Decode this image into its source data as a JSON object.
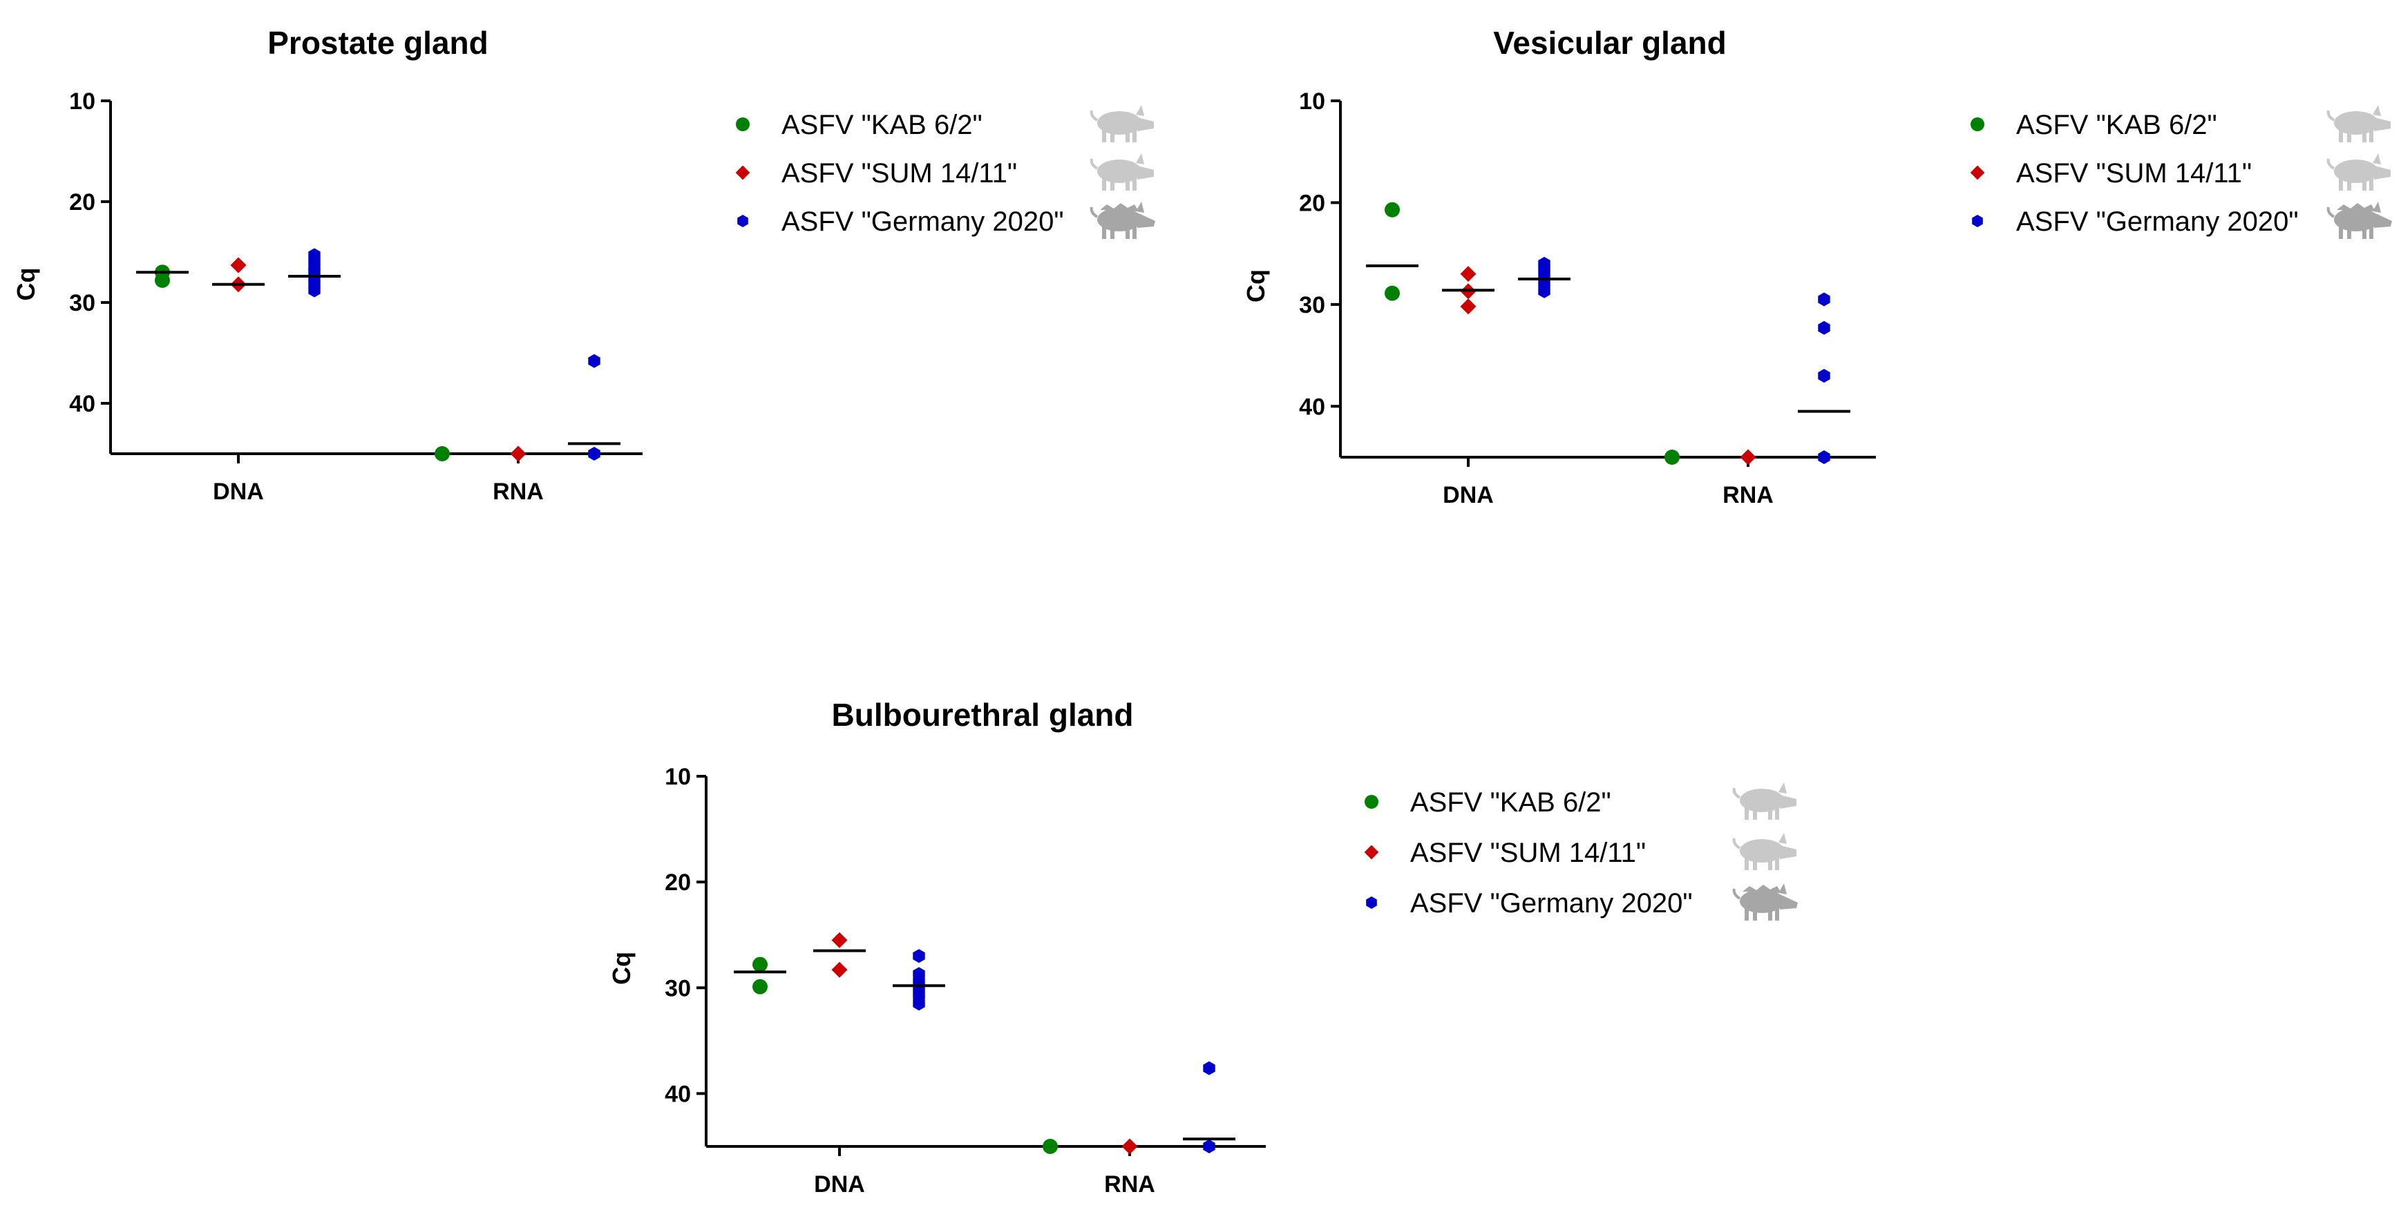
{
  "colors": {
    "kab": "#008000",
    "sum": "#cc0000",
    "germany": "#0000cc",
    "pig_domestic": "#c8c8c8",
    "pig_wild": "#a6a6a6"
  },
  "chart_data": [
    {
      "type": "scatter",
      "title": "Prostate gland",
      "ylabel": "Cq",
      "ylim": [
        10,
        45
      ],
      "y_inverted": true,
      "yticks": [
        "10",
        "20",
        "30",
        "40"
      ],
      "categories": [
        "DNA",
        "RNA"
      ],
      "legend": [
        {
          "name": "ASFV \"KAB 6/2\"",
          "marker": "circle",
          "color": "#008000",
          "icon": "domestic-pig-icon"
        },
        {
          "name": "ASFV \"SUM 14/11\"",
          "marker": "diamond",
          "color": "#cc0000",
          "icon": "domestic-pig-icon"
        },
        {
          "name": "ASFV \"Germany 2020\"",
          "marker": "hexagon",
          "color": "#0000cc",
          "icon": "wild-boar-icon"
        }
      ],
      "series": [
        {
          "name": "ASFV \"KAB 6/2\"",
          "DNA": {
            "values": [
              27.0,
              27.8
            ],
            "mean": 27.0
          },
          "RNA": {
            "values": [
              45.0
            ],
            "mean": null
          }
        },
        {
          "name": "ASFV \"SUM 14/11\"",
          "DNA": {
            "values": [
              26.3,
              28.2
            ],
            "mean": 28.2
          },
          "RNA": {
            "values": [
              45.0
            ],
            "mean": null
          }
        },
        {
          "name": "ASFV \"Germany 2020\"",
          "DNA": {
            "values": [
              25.3,
              25.9,
              26.5,
              27.0,
              27.6,
              28.2,
              28.8
            ],
            "mean": 27.4
          },
          "RNA": {
            "values": [
              35.8,
              45.0
            ],
            "mean": 44.0
          }
        }
      ]
    },
    {
      "type": "scatter",
      "title": "Vesicular gland",
      "ylabel": "Cq",
      "ylim": [
        10,
        45
      ],
      "y_inverted": true,
      "yticks": [
        "10",
        "20",
        "30",
        "40"
      ],
      "categories": [
        "DNA",
        "RNA"
      ],
      "legend": [
        {
          "name": "ASFV \"KAB 6/2\"",
          "marker": "circle",
          "color": "#008000",
          "icon": "domestic-pig-icon"
        },
        {
          "name": "ASFV \"SUM 14/11\"",
          "marker": "diamond",
          "color": "#cc0000",
          "icon": "domestic-pig-icon"
        },
        {
          "name": "ASFV \"Germany 2020\"",
          "marker": "hexagon",
          "color": "#0000cc",
          "icon": "wild-boar-icon"
        }
      ],
      "series": [
        {
          "name": "ASFV \"KAB 6/2\"",
          "DNA": {
            "values": [
              20.7,
              28.9
            ],
            "mean": 26.2
          },
          "RNA": {
            "values": [
              45.0
            ],
            "mean": null
          }
        },
        {
          "name": "ASFV \"SUM 14/11\"",
          "DNA": {
            "values": [
              27.0,
              28.7,
              30.2
            ],
            "mean": 28.6
          },
          "RNA": {
            "values": [
              45.0
            ],
            "mean": null
          }
        },
        {
          "name": "ASFV \"Germany 2020\"",
          "DNA": {
            "values": [
              26.0,
              26.6,
              27.3,
              28.0,
              28.7
            ],
            "mean": 27.5
          },
          "RNA": {
            "values": [
              29.5,
              32.3,
              37.0,
              45.0
            ],
            "mean": 40.5
          }
        }
      ]
    },
    {
      "type": "scatter",
      "title": "Bulbourethral gland",
      "ylabel": "Cq",
      "ylim": [
        10,
        45
      ],
      "y_inverted": true,
      "yticks": [
        "10",
        "20",
        "30",
        "40"
      ],
      "categories": [
        "DNA",
        "RNA"
      ],
      "legend": [
        {
          "name": "ASFV \"KAB 6/2\"",
          "marker": "circle",
          "color": "#008000",
          "icon": "domestic-pig-icon"
        },
        {
          "name": "ASFV \"SUM 14/11\"",
          "marker": "diamond",
          "color": "#cc0000",
          "icon": "domestic-pig-icon"
        },
        {
          "name": "ASFV \"Germany 2020\"",
          "marker": "hexagon",
          "color": "#0000cc",
          "icon": "wild-boar-icon"
        }
      ],
      "series": [
        {
          "name": "ASFV \"KAB 6/2\"",
          "DNA": {
            "values": [
              27.8,
              29.9
            ],
            "mean": 28.5
          },
          "RNA": {
            "values": [
              45.0
            ],
            "mean": null
          }
        },
        {
          "name": "ASFV \"SUM 14/11\"",
          "DNA": {
            "values": [
              25.5,
              28.3
            ],
            "mean": 26.5
          },
          "RNA": {
            "values": [
              45.0
            ],
            "mean": null
          }
        },
        {
          "name": "ASFV \"Germany 2020\"",
          "DNA": {
            "values": [
              27.0,
              28.7,
              29.4,
              30.2,
              30.8,
              31.5
            ],
            "mean": 29.8
          },
          "RNA": {
            "values": [
              37.6,
              45.0
            ],
            "mean": 44.3
          }
        }
      ]
    }
  ]
}
